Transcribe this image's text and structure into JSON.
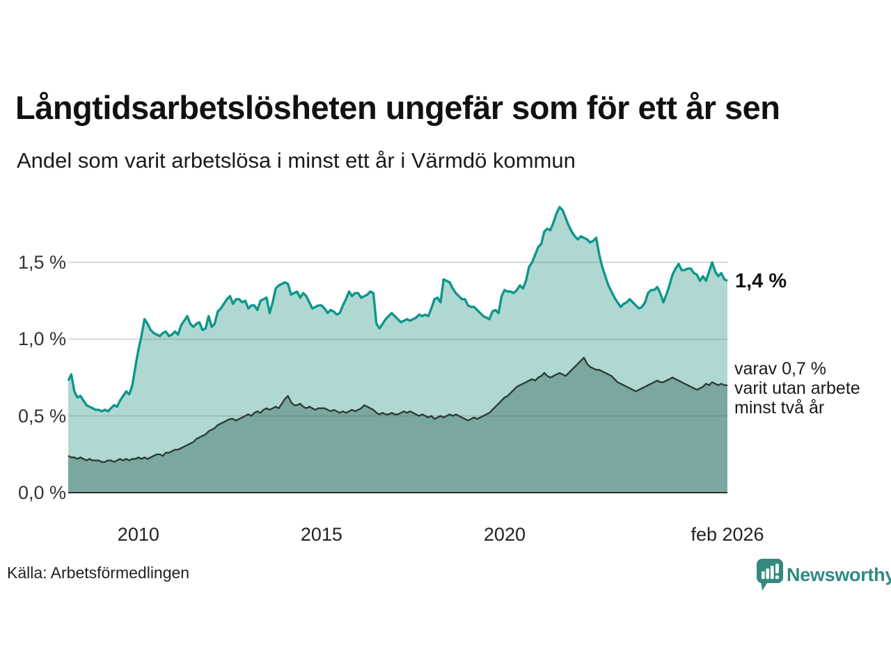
{
  "header": {
    "title": "Långtidsarbetslösheten ungefär som för ett år sen",
    "subtitle": "Andel som varit arbetslösa i minst ett år i Värmdö kommun"
  },
  "chart": {
    "y_axis": {
      "tick_labels": [
        "1,5 %",
        "1,0 %",
        "0,5 %",
        "0,0 %"
      ],
      "tick_values": [
        1.5,
        1.0,
        0.5,
        0.0
      ]
    },
    "x_axis": {
      "tick_labels": [
        "2010",
        "2015",
        "2020",
        "feb 2026"
      ],
      "tick_positions": [
        2010,
        2015,
        2020,
        2026.083
      ]
    },
    "annotations": {
      "latest_value": "1,4 %",
      "secondary": "varav 0,7 %\nvarit utan arbete\nminst två år"
    }
  },
  "footer": {
    "source": "Källa: Arbetsförmedlingen",
    "brand": "Newsworthy"
  },
  "colors": {
    "line_min_one_year": "#0d968b",
    "fill_min_one_year": "#b0d8d2",
    "line_min_two_years": "#2d3c38",
    "fill_min_two_years": "#7aa8a0",
    "gridline": "rgba(90,95,95,0.28)",
    "axis_line": "#2e2e2e",
    "brand_teal": "#2f8a82"
  },
  "chart_data": {
    "type": "area",
    "title": "Långtidsarbetslösheten ungefär som för ett år sen",
    "subtitle": "Andel som varit arbetslösa i minst ett år i Värmdö kommun",
    "unit": "%",
    "frequency": "monthly",
    "x_start": "2008-02",
    "x_end": "2026-02",
    "x_numeric_start": 2008.083,
    "x_numeric_end": 2026.083,
    "ylim": [
      0,
      1.9
    ],
    "y_ticks": [
      0.0,
      0.5,
      1.0,
      1.5
    ],
    "grid": true,
    "legend_position": "right-annotations",
    "series": [
      {
        "name": "Arbetslösa minst ett år",
        "latest_label": "1,4 %",
        "values": [
          0.73,
          0.77,
          0.66,
          0.62,
          0.63,
          0.6,
          0.57,
          0.56,
          0.55,
          0.54,
          0.54,
          0.53,
          0.54,
          0.53,
          0.55,
          0.57,
          0.56,
          0.6,
          0.63,
          0.66,
          0.64,
          0.7,
          0.82,
          0.93,
          1.02,
          1.13,
          1.1,
          1.06,
          1.04,
          1.03,
          1.02,
          1.04,
          1.05,
          1.02,
          1.03,
          1.05,
          1.03,
          1.09,
          1.12,
          1.15,
          1.1,
          1.08,
          1.1,
          1.11,
          1.06,
          1.07,
          1.15,
          1.08,
          1.1,
          1.18,
          1.2,
          1.23,
          1.26,
          1.28,
          1.23,
          1.26,
          1.26,
          1.24,
          1.25,
          1.2,
          1.22,
          1.22,
          1.19,
          1.25,
          1.26,
          1.27,
          1.17,
          1.24,
          1.33,
          1.35,
          1.36,
          1.37,
          1.36,
          1.29,
          1.3,
          1.31,
          1.27,
          1.3,
          1.28,
          1.24,
          1.2,
          1.21,
          1.22,
          1.22,
          1.2,
          1.17,
          1.19,
          1.18,
          1.16,
          1.17,
          1.22,
          1.26,
          1.31,
          1.28,
          1.3,
          1.3,
          1.27,
          1.28,
          1.29,
          1.31,
          1.3,
          1.1,
          1.07,
          1.1,
          1.13,
          1.15,
          1.17,
          1.15,
          1.13,
          1.11,
          1.12,
          1.13,
          1.12,
          1.13,
          1.14,
          1.16,
          1.15,
          1.16,
          1.15,
          1.2,
          1.26,
          1.27,
          1.24,
          1.39,
          1.38,
          1.37,
          1.33,
          1.3,
          1.28,
          1.26,
          1.26,
          1.22,
          1.21,
          1.21,
          1.19,
          1.17,
          1.15,
          1.14,
          1.13,
          1.18,
          1.19,
          1.17,
          1.28,
          1.32,
          1.31,
          1.31,
          1.3,
          1.32,
          1.35,
          1.33,
          1.38,
          1.47,
          1.5,
          1.55,
          1.6,
          1.62,
          1.7,
          1.72,
          1.71,
          1.76,
          1.82,
          1.86,
          1.84,
          1.79,
          1.74,
          1.7,
          1.67,
          1.65,
          1.67,
          1.66,
          1.65,
          1.63,
          1.64,
          1.66,
          1.55,
          1.47,
          1.41,
          1.35,
          1.31,
          1.27,
          1.24,
          1.21,
          1.23,
          1.24,
          1.26,
          1.24,
          1.22,
          1.2,
          1.21,
          1.24,
          1.3,
          1.32,
          1.32,
          1.34,
          1.3,
          1.24,
          1.29,
          1.35,
          1.42,
          1.46,
          1.49,
          1.45,
          1.45,
          1.46,
          1.46,
          1.43,
          1.42,
          1.38,
          1.41,
          1.38,
          1.44,
          1.5,
          1.44,
          1.41,
          1.43,
          1.39,
          1.38
        ]
      },
      {
        "name": "Varav utan arbete minst två år",
        "latest_label": "0,7 %",
        "values": [
          0.24,
          0.23,
          0.23,
          0.22,
          0.23,
          0.22,
          0.21,
          0.22,
          0.21,
          0.21,
          0.21,
          0.2,
          0.2,
          0.21,
          0.21,
          0.2,
          0.21,
          0.22,
          0.21,
          0.22,
          0.21,
          0.22,
          0.22,
          0.23,
          0.22,
          0.23,
          0.22,
          0.23,
          0.24,
          0.25,
          0.25,
          0.24,
          0.26,
          0.26,
          0.27,
          0.28,
          0.28,
          0.29,
          0.3,
          0.31,
          0.32,
          0.33,
          0.35,
          0.36,
          0.37,
          0.38,
          0.4,
          0.41,
          0.42,
          0.44,
          0.45,
          0.46,
          0.47,
          0.48,
          0.48,
          0.47,
          0.48,
          0.49,
          0.5,
          0.51,
          0.5,
          0.52,
          0.53,
          0.52,
          0.54,
          0.55,
          0.54,
          0.55,
          0.56,
          0.55,
          0.58,
          0.61,
          0.63,
          0.59,
          0.57,
          0.57,
          0.58,
          0.56,
          0.55,
          0.56,
          0.55,
          0.54,
          0.55,
          0.55,
          0.55,
          0.54,
          0.53,
          0.54,
          0.53,
          0.52,
          0.53,
          0.52,
          0.53,
          0.54,
          0.53,
          0.54,
          0.55,
          0.57,
          0.56,
          0.55,
          0.54,
          0.52,
          0.51,
          0.52,
          0.51,
          0.51,
          0.52,
          0.51,
          0.51,
          0.52,
          0.53,
          0.52,
          0.53,
          0.52,
          0.51,
          0.5,
          0.51,
          0.5,
          0.49,
          0.5,
          0.48,
          0.49,
          0.5,
          0.49,
          0.5,
          0.51,
          0.5,
          0.51,
          0.5,
          0.49,
          0.48,
          0.47,
          0.48,
          0.49,
          0.48,
          0.49,
          0.5,
          0.51,
          0.52,
          0.54,
          0.56,
          0.58,
          0.6,
          0.62,
          0.63,
          0.65,
          0.67,
          0.69,
          0.7,
          0.71,
          0.72,
          0.73,
          0.74,
          0.73,
          0.75,
          0.76,
          0.78,
          0.76,
          0.75,
          0.76,
          0.77,
          0.78,
          0.77,
          0.76,
          0.78,
          0.8,
          0.82,
          0.84,
          0.86,
          0.88,
          0.84,
          0.82,
          0.81,
          0.8,
          0.8,
          0.79,
          0.78,
          0.77,
          0.76,
          0.74,
          0.72,
          0.71,
          0.7,
          0.69,
          0.68,
          0.67,
          0.66,
          0.67,
          0.68,
          0.69,
          0.7,
          0.71,
          0.72,
          0.73,
          0.72,
          0.72,
          0.73,
          0.74,
          0.75,
          0.74,
          0.73,
          0.72,
          0.71,
          0.7,
          0.69,
          0.68,
          0.67,
          0.68,
          0.69,
          0.71,
          0.7,
          0.72,
          0.71,
          0.7,
          0.71,
          0.7,
          0.7
        ]
      }
    ]
  }
}
